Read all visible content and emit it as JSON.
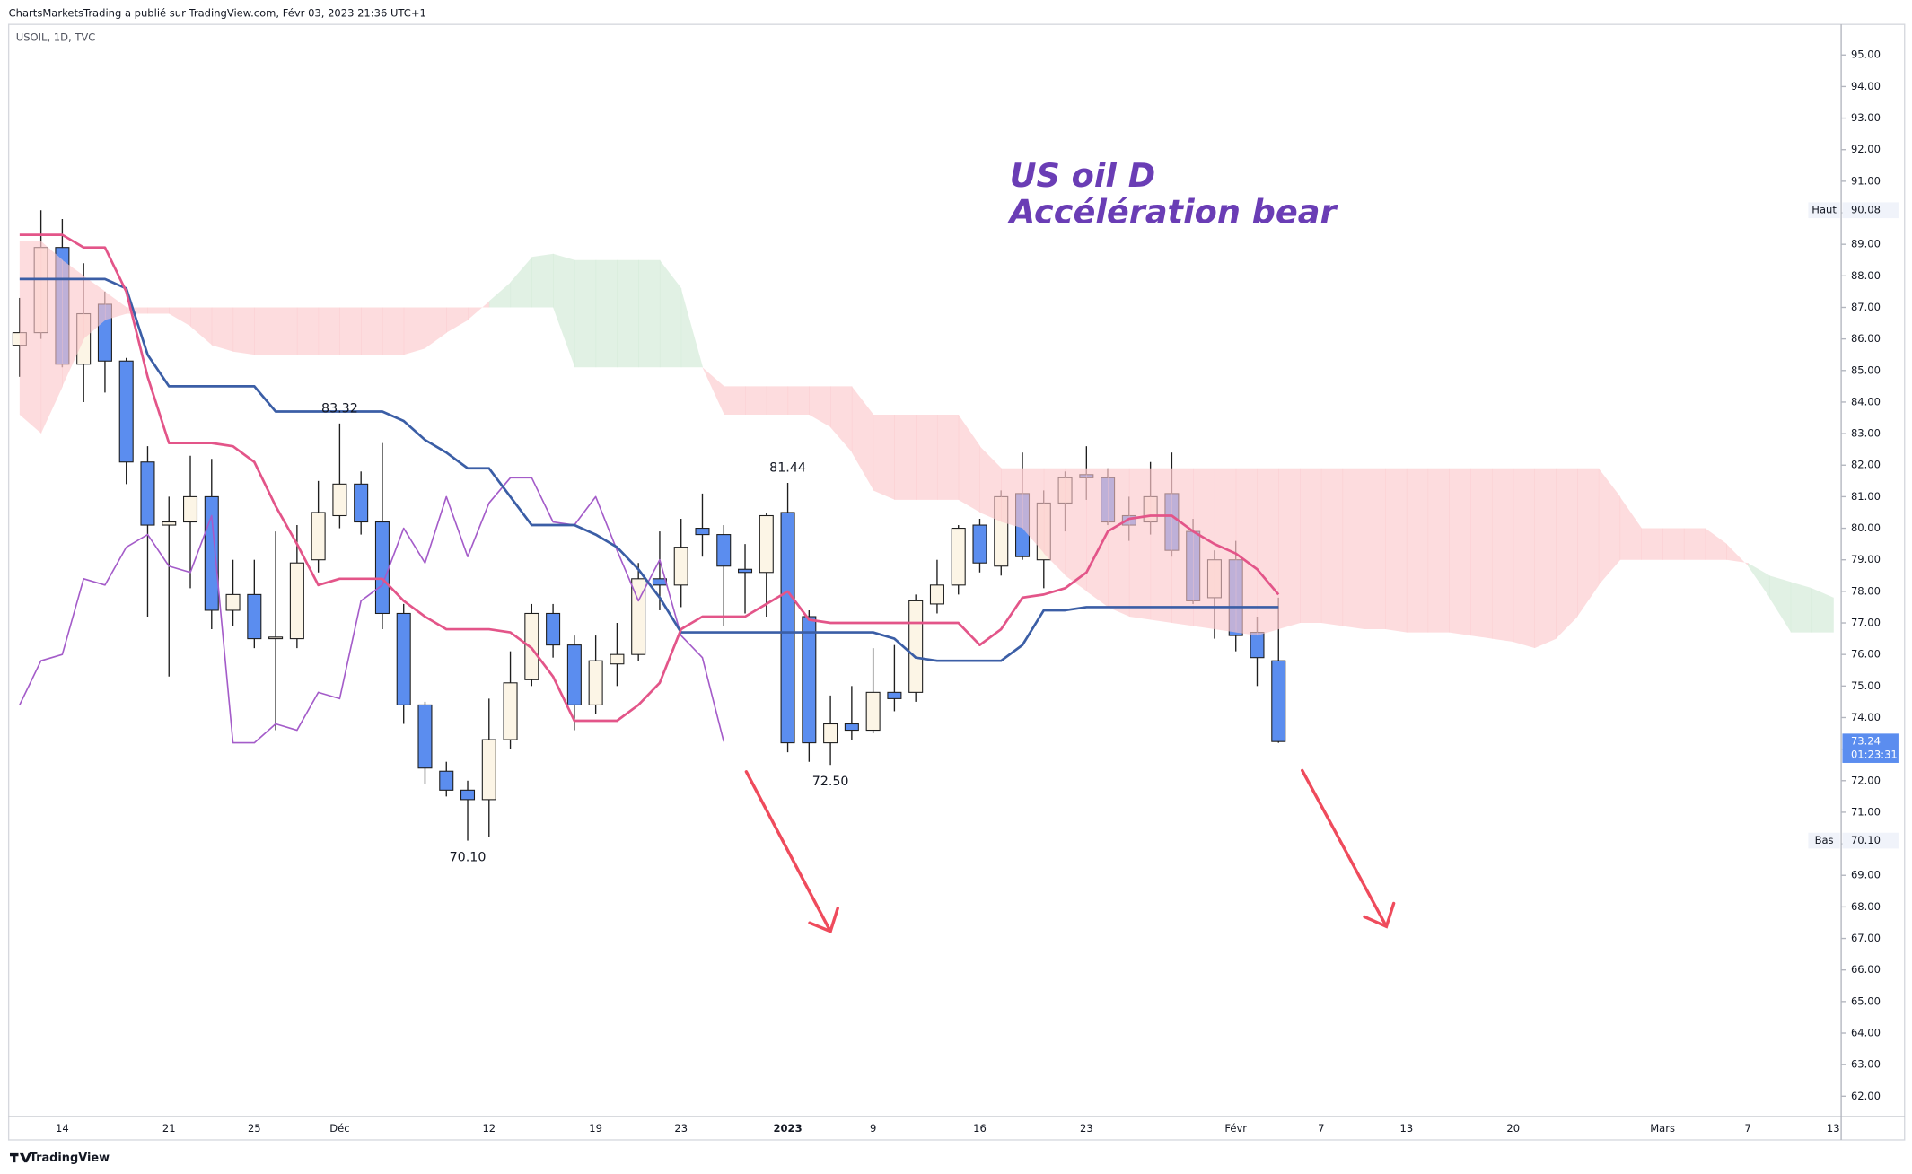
{
  "page": {
    "byline": "ChartsMarketsTrading a publié sur TradingView.com, Févr 03, 2023 21:36 UTC+1",
    "brand": "TradingView"
  },
  "chart_data": {
    "type": "candlestick",
    "symbol": "USOIL, 1D, TVC",
    "annotations": [
      "US oil D",
      "Accélération bear"
    ],
    "categories": [
      null,
      null,
      "14",
      null,
      null,
      null,
      null,
      "21",
      null,
      null,
      null,
      "25",
      null,
      null,
      null,
      "Déc",
      null,
      null,
      null,
      null,
      null,
      null,
      "12",
      null,
      null,
      null,
      null,
      "19",
      null,
      null,
      null,
      "23",
      null,
      null,
      null,
      null,
      "2023",
      null,
      null,
      null,
      "9",
      null,
      null,
      null,
      null,
      "16",
      null,
      null,
      null,
      null,
      "23",
      null,
      null,
      null,
      null,
      null,
      null,
      "Févr",
      null,
      null,
      null,
      "7",
      null,
      null,
      null,
      "13",
      null,
      null,
      null,
      null,
      "20",
      null,
      null,
      null,
      null,
      null,
      null,
      "Mars",
      null,
      null,
      null,
      "7",
      null,
      null,
      null,
      "13"
    ],
    "ylim": [
      61.35,
      95.97
    ],
    "yticks": [
      {
        "value": 62,
        "label": "62.00"
      },
      {
        "value": 63,
        "label": "63.00"
      },
      {
        "value": 64,
        "label": "64.00"
      },
      {
        "value": 65,
        "label": "65.00"
      },
      {
        "value": 66,
        "label": "66.00"
      },
      {
        "value": 67,
        "label": "67.00"
      },
      {
        "value": 68,
        "label": "68.00"
      },
      {
        "value": 69,
        "label": "69.00"
      },
      {
        "value": 70,
        "label": "70.00"
      },
      {
        "value": 71,
        "label": "71.00"
      },
      {
        "value": 72,
        "label": "72.00"
      },
      {
        "value": 73,
        "label": "73.00"
      },
      {
        "value": 74,
        "label": "74.00"
      },
      {
        "value": 75,
        "label": "75.00"
      },
      {
        "value": 76,
        "label": "76.00"
      },
      {
        "value": 77,
        "label": "77.00"
      },
      {
        "value": 78,
        "label": "78.00"
      },
      {
        "value": 79,
        "label": "79.00"
      },
      {
        "value": 80,
        "label": "80.00"
      },
      {
        "value": 81,
        "label": "81.00"
      },
      {
        "value": 82,
        "label": "82.00"
      },
      {
        "value": 83,
        "label": "83.00"
      },
      {
        "value": 84,
        "label": "84.00"
      },
      {
        "value": 85,
        "label": "85.00"
      },
      {
        "value": 86,
        "label": "86.00"
      },
      {
        "value": 87,
        "label": "87.00"
      },
      {
        "value": 88,
        "label": "88.00"
      },
      {
        "value": 89,
        "label": "89.00"
      },
      {
        "value": 90,
        "label": "90.00"
      },
      {
        "value": 91,
        "label": "91.00"
      },
      {
        "value": 92,
        "label": "92.00"
      },
      {
        "value": 93,
        "label": "93.00"
      },
      {
        "value": 94,
        "label": "94.00"
      },
      {
        "value": 95,
        "label": "95.00"
      }
    ],
    "grid": false,
    "candles": {
      "up_color": "#fcf5e6",
      "down_color": "#5b8def",
      "wick_color": "#1e1e1e",
      "open": [
        85.8,
        86.2,
        88.9,
        85.2,
        87.1,
        85.3,
        82.1,
        80.1,
        80.2,
        81.0,
        77.4,
        77.9,
        76.5,
        76.5,
        79.0,
        80.4,
        81.4,
        80.2,
        77.3,
        74.4,
        72.3,
        71.7,
        71.4,
        73.3,
        75.2,
        77.3,
        76.3,
        74.4,
        75.7,
        76.0,
        78.4,
        78.2,
        80.0,
        79.8,
        78.7,
        78.6,
        80.5,
        77.2,
        73.2,
        73.8,
        73.6,
        74.8,
        74.8,
        77.6,
        78.2,
        80.1,
        78.8,
        81.1,
        79.0,
        80.8,
        81.7,
        81.6,
        80.4,
        80.2,
        81.1,
        79.9,
        77.8,
        79.0,
        76.7,
        75.8,
        null,
        null,
        null,
        null,
        null,
        null,
        null,
        null,
        null,
        null,
        null,
        null,
        null,
        null,
        null,
        null,
        null,
        null,
        null,
        null,
        null,
        null,
        null,
        null,
        null,
        null
      ],
      "high": [
        87.3,
        90.08,
        89.8,
        88.4,
        87.5,
        85.4,
        82.6,
        81.0,
        82.3,
        82.2,
        79.0,
        79.0,
        79.9,
        80.1,
        81.5,
        83.32,
        81.8,
        82.7,
        77.6,
        74.5,
        72.6,
        72.0,
        74.6,
        76.1,
        77.6,
        77.6,
        76.6,
        76.6,
        77.0,
        78.9,
        79.9,
        80.3,
        81.1,
        80.1,
        79.5,
        80.5,
        81.44,
        77.4,
        74.7,
        75.0,
        76.2,
        76.3,
        77.9,
        79.0,
        80.1,
        80.3,
        81.2,
        82.4,
        81.2,
        81.8,
        82.6,
        81.9,
        81.0,
        82.1,
        82.4,
        80.3,
        79.3,
        79.6,
        77.2,
        77.8,
        null,
        null,
        null,
        null,
        null,
        null,
        null,
        null,
        null,
        null,
        null,
        null,
        null,
        null,
        null,
        null,
        null,
        null,
        null,
        null,
        null,
        null,
        null,
        null,
        null,
        null
      ],
      "low": [
        84.8,
        86.0,
        85.1,
        84.0,
        84.3,
        81.4,
        77.2,
        75.3,
        78.1,
        76.8,
        76.9,
        76.2,
        73.6,
        76.2,
        78.6,
        80.0,
        79.8,
        76.8,
        73.8,
        71.9,
        71.5,
        70.1,
        70.2,
        73.0,
        75.0,
        75.9,
        73.6,
        74.1,
        75.0,
        75.8,
        77.4,
        77.5,
        79.1,
        76.9,
        77.3,
        77.2,
        72.9,
        72.6,
        72.5,
        73.3,
        73.5,
        74.2,
        74.5,
        77.3,
        77.9,
        78.6,
        78.5,
        79.0,
        78.1,
        79.9,
        80.9,
        80.1,
        79.6,
        79.8,
        79.1,
        77.6,
        76.5,
        76.1,
        75.0,
        73.2,
        null,
        null,
        null,
        null,
        null,
        null,
        null,
        null,
        null,
        null,
        null,
        null,
        null,
        null,
        null,
        null,
        null,
        null,
        null,
        null,
        null,
        null,
        null,
        null,
        null,
        null
      ],
      "close": [
        86.2,
        88.9,
        85.2,
        86.8,
        85.3,
        82.1,
        80.1,
        80.2,
        81.0,
        77.4,
        77.9,
        76.5,
        76.55,
        78.9,
        80.5,
        81.4,
        80.2,
        77.3,
        74.4,
        72.4,
        71.7,
        71.4,
        73.3,
        75.1,
        77.3,
        76.3,
        74.4,
        75.8,
        76.0,
        78.4,
        78.2,
        79.4,
        79.8,
        78.8,
        78.6,
        80.4,
        73.2,
        73.2,
        73.8,
        73.6,
        74.8,
        74.6,
        77.7,
        78.2,
        80.0,
        78.9,
        81.0,
        79.1,
        80.8,
        81.6,
        81.6,
        80.2,
        80.1,
        81.0,
        79.3,
        77.7,
        79.0,
        76.6,
        75.9,
        73.24,
        null,
        null,
        null,
        null,
        null,
        null,
        null,
        null,
        null,
        null,
        null,
        null,
        null,
        null,
        null,
        null,
        null,
        null,
        null,
        null,
        null,
        null,
        null,
        null,
        null,
        null
      ]
    },
    "ichimoku": {
      "cloud_up_color": "#cfe9d3",
      "cloud_down_color": "#fcc6ca",
      "leading_span_a": [
        83.6,
        83.0,
        84.5,
        86.0,
        86.6,
        86.8,
        86.8,
        86.8,
        86.4,
        85.8,
        85.6,
        85.5,
        85.5,
        85.5,
        85.5,
        85.5,
        85.5,
        85.5,
        85.5,
        85.7,
        86.2,
        86.6,
        87.2,
        87.8,
        88.6,
        88.7,
        88.5,
        88.5,
        88.5,
        88.5,
        88.5,
        87.6,
        85.1,
        83.6,
        83.6,
        83.6,
        83.6,
        83.6,
        83.2,
        82.4,
        81.2,
        80.9,
        80.9,
        80.9,
        80.9,
        80.5,
        80.2,
        80.0,
        79.2,
        78.5,
        78.0,
        77.5,
        77.2,
        77.1,
        77.0,
        76.9,
        76.8,
        76.7,
        76.6,
        76.8,
        77.0,
        77.0,
        76.9,
        76.8,
        76.8,
        76.7,
        76.7,
        76.7,
        76.6,
        76.5,
        76.4,
        76.2,
        76.5,
        77.2,
        78.2,
        79.0,
        79.0,
        79.0,
        79.0,
        79.0,
        79.0,
        78.9,
        78.5,
        78.3,
        78.1,
        77.8
      ],
      "leading_span_b": [
        89.1,
        89.1,
        88.5,
        88.0,
        87.5,
        87.0,
        87.0,
        87.0,
        87.0,
        87.0,
        87.0,
        87.0,
        87.0,
        87.0,
        87.0,
        87.0,
        87.0,
        87.0,
        87.0,
        87.0,
        87.0,
        87.0,
        87.0,
        87.0,
        87.0,
        87.0,
        85.1,
        85.1,
        85.1,
        85.1,
        85.1,
        85.1,
        85.1,
        84.5,
        84.5,
        84.5,
        84.5,
        84.5,
        84.5,
        84.5,
        83.6,
        83.6,
        83.6,
        83.6,
        83.6,
        82.6,
        81.9,
        81.9,
        81.9,
        81.9,
        81.9,
        81.9,
        81.9,
        81.9,
        81.9,
        81.9,
        81.9,
        81.9,
        81.9,
        81.9,
        81.9,
        81.9,
        81.9,
        81.9,
        81.9,
        81.9,
        81.9,
        81.9,
        81.9,
        81.9,
        81.9,
        81.9,
        81.9,
        81.9,
        81.9,
        81.0,
        80.0,
        80.0,
        80.0,
        80.0,
        79.5,
        78.8,
        77.8,
        76.7,
        76.7,
        76.7
      ],
      "conversion_line": {
        "color": "#e35589",
        "width": 2,
        "values": [
          89.3,
          89.3,
          89.3,
          88.9,
          88.9,
          87.5,
          84.8,
          82.7,
          82.7,
          82.7,
          82.6,
          82.1,
          80.7,
          79.5,
          78.2,
          78.4,
          78.4,
          78.4,
          77.7,
          77.2,
          76.8,
          76.8,
          76.8,
          76.7,
          76.2,
          75.3,
          73.9,
          73.9,
          73.9,
          74.4,
          75.1,
          76.8,
          77.2,
          77.2,
          77.2,
          77.6,
          78.0,
          77.1,
          77.0,
          77.0,
          77.0,
          77.0,
          77.0,
          77.0,
          77.0,
          76.3,
          76.8,
          77.8,
          77.9,
          78.1,
          78.6,
          79.9,
          80.3,
          80.4,
          80.4,
          79.9,
          79.5,
          79.2,
          78.7,
          77.9,
          null,
          null,
          null,
          null,
          null,
          null,
          null,
          null,
          null,
          null,
          null,
          null,
          null,
          null,
          null,
          null,
          null,
          null,
          null,
          null,
          null,
          null,
          null,
          null,
          null,
          null
        ]
      },
      "base_line": {
        "color": "#3b5ea6",
        "width": 2,
        "values": [
          87.9,
          87.9,
          87.9,
          87.9,
          87.9,
          87.6,
          85.5,
          84.5,
          84.5,
          84.5,
          84.5,
          84.5,
          83.7,
          83.7,
          83.7,
          83.7,
          83.7,
          83.7,
          83.4,
          82.8,
          82.4,
          81.9,
          81.9,
          81.0,
          80.1,
          80.1,
          80.1,
          79.8,
          79.4,
          78.7,
          77.8,
          76.7,
          76.7,
          76.7,
          76.7,
          76.7,
          76.7,
          76.7,
          76.7,
          76.7,
          76.7,
          76.5,
          75.9,
          75.8,
          75.8,
          75.8,
          75.8,
          76.3,
          77.4,
          77.4,
          77.5,
          77.5,
          77.5,
          77.5,
          77.5,
          77.5,
          77.5,
          77.5,
          77.5,
          77.5,
          null,
          null,
          null,
          null,
          null,
          null,
          null,
          null,
          null,
          null,
          null,
          null,
          null,
          null,
          null,
          null,
          null,
          null,
          null,
          null,
          null,
          null,
          null,
          null,
          null,
          null
        ]
      },
      "lagging_span": {
        "color": "#a45cc9",
        "width": 1.2,
        "values": [
          74.4,
          75.8,
          76.0,
          78.4,
          78.2,
          79.4,
          79.8,
          78.8,
          78.6,
          80.4,
          73.2,
          73.2,
          73.8,
          73.6,
          74.8,
          74.6,
          77.7,
          78.2,
          80.0,
          78.9,
          81.0,
          79.1,
          80.8,
          81.6,
          81.6,
          80.2,
          80.1,
          81.0,
          79.3,
          77.7,
          79.0,
          76.6,
          75.9,
          73.24,
          null,
          null,
          null,
          null,
          null,
          null,
          null,
          null,
          null,
          null,
          null,
          null,
          null,
          null,
          null,
          null,
          null,
          null,
          null,
          null,
          null,
          null,
          null,
          null,
          null,
          null,
          null,
          null,
          null,
          null,
          null,
          null,
          null,
          null,
          null,
          null,
          null,
          null,
          null,
          null,
          null,
          null,
          null,
          null,
          null,
          null,
          null,
          null,
          null,
          null,
          null,
          null
        ]
      }
    },
    "extreme_labels": [
      83.32,
      81.44,
      {
        "value": 72.5,
        "label": "72.50"
      },
      {
        "value": 70.1,
        "label": "70.10"
      }
    ],
    "high_badge": {
      "name": "Haut",
      "value": 90.08
    },
    "low_badge": {
      "name": "Bas",
      "value": 70.1,
      "value_label": "70.10"
    },
    "last_price": {
      "value": 73.24,
      "countdown": "01:23:31",
      "color": "#5b8def"
    }
  }
}
